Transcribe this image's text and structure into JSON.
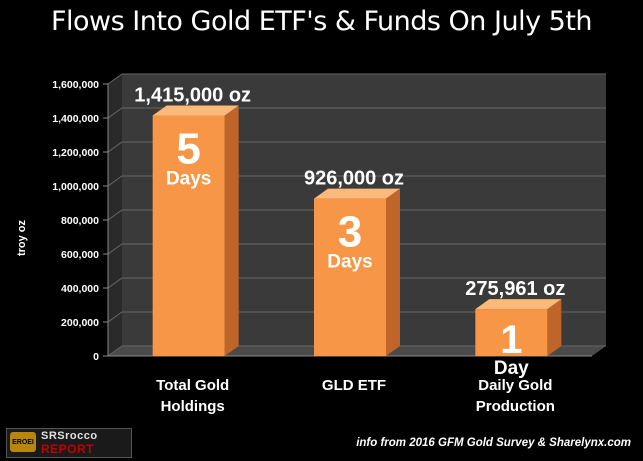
{
  "title": "Flows Into Gold ETF's & Funds On July 5th",
  "source_note": "info from 2016 GFM Gold Survey & Sharelynx.com",
  "logo": {
    "badge_text": "EROEI",
    "line1": "SRSrocco",
    "line2": "REPORT"
  },
  "colors": {
    "background": "#000000",
    "bar_front": "#f79646",
    "bar_side": "#c0652a",
    "bar_top": "#fbb97a",
    "grid": "#666666",
    "wall": "#3a3a3a",
    "text": "#ffffff"
  },
  "chart_data": {
    "type": "bar",
    "ylabel": "troy oz",
    "ylim": [
      0,
      1600000
    ],
    "yticks": [
      "0",
      "200,000",
      "400,000",
      "600,000",
      "800,000",
      "1,000,000",
      "1,200,000",
      "1,400,000",
      "1,600,000"
    ],
    "grid": true,
    "categories": [
      "Total Gold Holdings",
      "GLD ETF",
      "Daily Gold Production"
    ],
    "category_lines": [
      [
        "Total Gold",
        "Holdings"
      ],
      [
        "GLD  ETF"
      ],
      [
        "Daily Gold",
        "Production"
      ]
    ],
    "values": [
      1415000,
      926000,
      275961
    ],
    "data_labels": [
      "1,415,000 oz",
      "926,000 oz",
      "275,961 oz"
    ],
    "day_numbers": [
      "5",
      "3",
      "1"
    ],
    "day_words": [
      "Days",
      "Days",
      "Day"
    ]
  }
}
